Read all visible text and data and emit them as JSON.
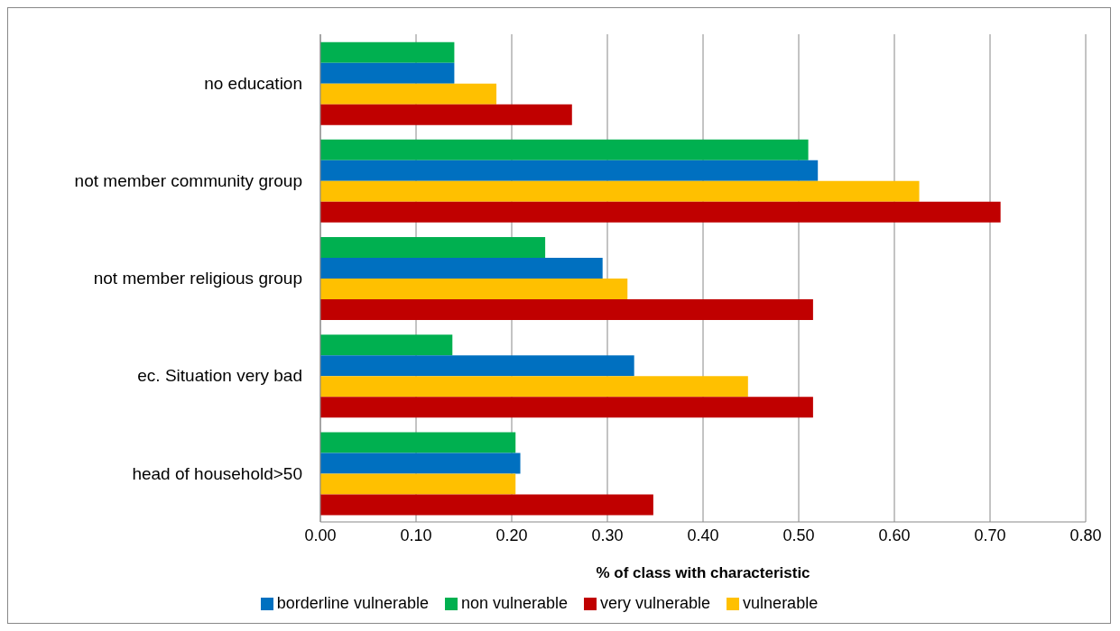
{
  "chart_data": {
    "type": "bar",
    "orientation": "horizontal",
    "xlabel": "% of class  with characteristic",
    "categories": [
      "no education",
      "not member community group",
      "not member religious group",
      "ec. Situation very bad",
      "head of household>50"
    ],
    "series": [
      {
        "name": "non vulnerable",
        "color": "#00b050",
        "values": [
          0.14,
          0.51,
          0.235,
          0.138,
          0.204
        ]
      },
      {
        "name": "borderline vulnerable",
        "color": "#0070c0",
        "values": [
          0.14,
          0.52,
          0.295,
          0.328,
          0.209
        ]
      },
      {
        "name": "vulnerable",
        "color": "#ffc000",
        "values": [
          0.184,
          0.626,
          0.321,
          0.447,
          0.204
        ]
      },
      {
        "name": "very vulnerable",
        "color": "#c00000",
        "values": [
          0.263,
          0.711,
          0.515,
          0.515,
          0.348
        ]
      }
    ],
    "xlim": [
      0,
      0.8
    ],
    "xticks": [
      {
        "value": 0,
        "label": "0.00"
      },
      {
        "value": 0.1,
        "label": "0.10"
      },
      {
        "value": 0.2,
        "label": "0.20"
      },
      {
        "value": 0.3,
        "label": "0.30"
      },
      {
        "value": 0.4,
        "label": "0.40"
      },
      {
        "value": 0.5,
        "label": "0.50"
      },
      {
        "value": 0.6,
        "label": "0.60"
      },
      {
        "value": 0.7,
        "label": "0.70"
      },
      {
        "value": 0.8,
        "label": "0.80"
      }
    ],
    "grid": "x",
    "legend": "bottom"
  }
}
